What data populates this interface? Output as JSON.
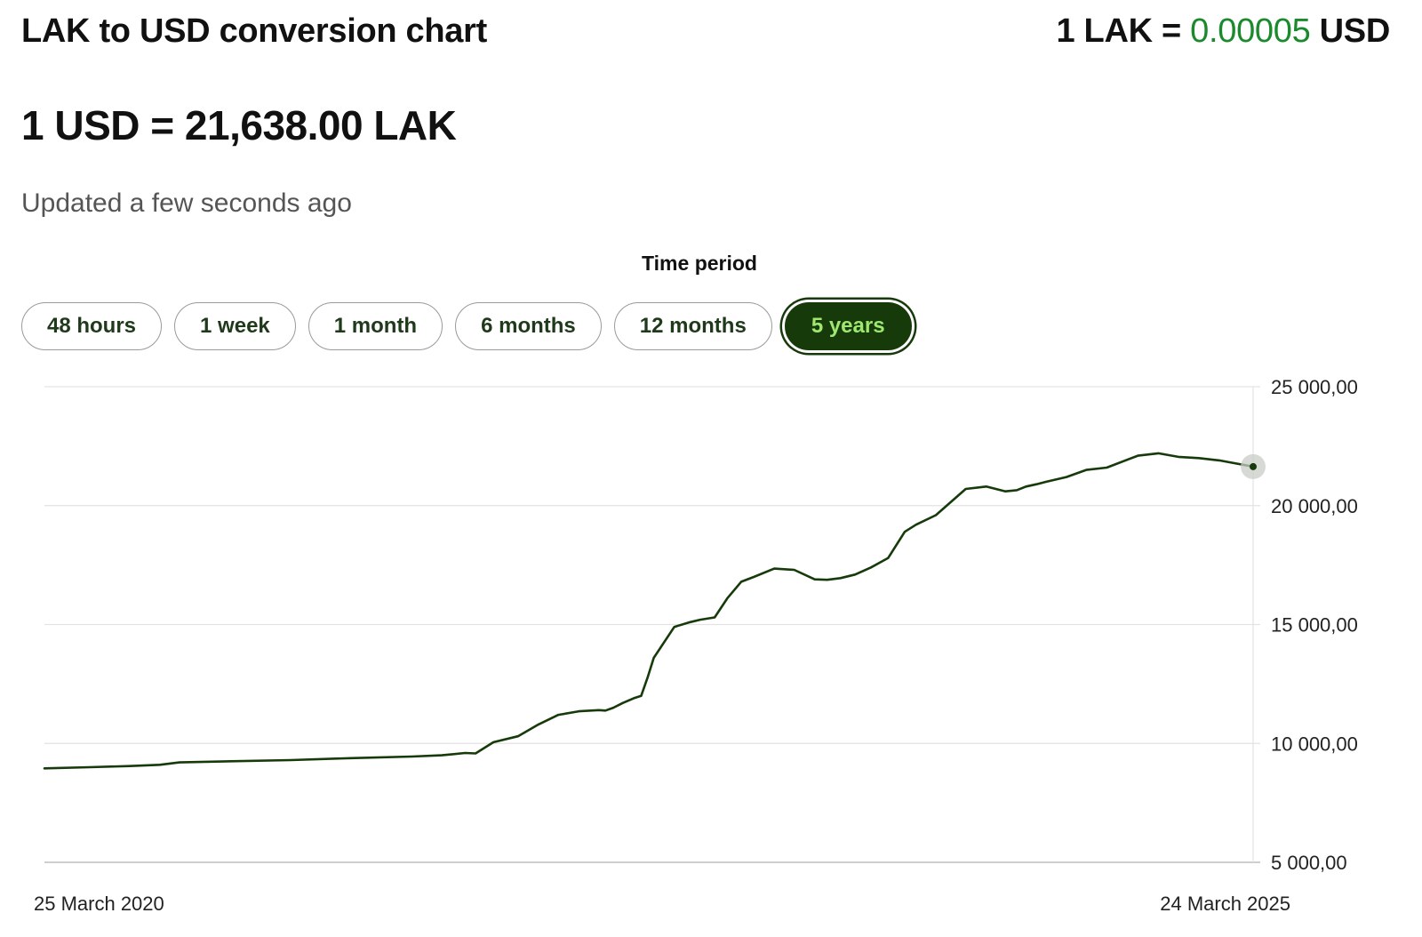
{
  "header": {
    "title": "LAK to USD conversion chart",
    "inverse_prefix": "1 LAK = ",
    "inverse_value": "0.00005",
    "inverse_suffix": " USD",
    "rate": "1 USD = 21,638.00 LAK",
    "updated": "Updated a few seconds ago"
  },
  "time_period": {
    "label": "Time period",
    "options": [
      "48 hours",
      "1 week",
      "1 month",
      "6 months",
      "12 months",
      "5 years"
    ],
    "selected": "5 years"
  },
  "colors": {
    "line": "#173a0b",
    "accent_green": "#1a8a2c",
    "active_button_bg": "#173a0b",
    "active_button_text": "#9fe870",
    "grid": "#e3e3e3"
  },
  "chart_data": {
    "type": "line",
    "title": "",
    "xlabel": "",
    "ylabel": "",
    "x_start_label": "25 March 2020",
    "x_end_label": "24 March 2025",
    "x_range": [
      "2020-03-25",
      "2025-03-24"
    ],
    "ylim": [
      5000,
      25000
    ],
    "y_ticks": [
      "25 000,00",
      "20 000,00",
      "15 000,00",
      "10 000,00",
      "5 000,00"
    ],
    "y_tick_values": [
      25000,
      20000,
      15000,
      10000,
      5000
    ],
    "grid": true,
    "y_axis_position": "right",
    "series": [
      {
        "x": [
          "2020-03-25",
          "2020-06-01",
          "2020-08-01",
          "2020-09-15",
          "2020-10-15",
          "2021-01-01",
          "2021-04-01",
          "2021-07-01",
          "2021-10-01",
          "2021-11-15",
          "2021-12-20",
          "2022-01-05",
          "2022-02-01",
          "2022-03-10",
          "2022-04-10",
          "2022-05-10",
          "2022-06-10",
          "2022-07-10",
          "2022-07-20",
          "2022-08-01",
          "2022-08-15",
          "2022-09-01",
          "2022-09-12",
          "2022-09-22",
          "2022-10-01",
          "2022-11-01",
          "2022-11-25",
          "2022-12-10",
          "2023-01-01",
          "2023-01-20",
          "2023-02-10",
          "2023-03-01",
          "2023-04-01",
          "2023-05-01",
          "2023-06-01",
          "2023-06-20",
          "2023-07-10",
          "2023-08-01",
          "2023-08-25",
          "2023-09-20",
          "2023-10-15",
          "2023-11-01",
          "2023-12-01",
          "2024-01-15",
          "2024-02-15",
          "2024-03-15",
          "2024-04-01",
          "2024-04-15",
          "2024-05-01",
          "2024-05-15",
          "2024-06-15",
          "2024-07-15",
          "2024-08-15",
          "2024-10-01",
          "2024-11-01",
          "2024-12-01",
          "2025-01-01",
          "2025-02-01",
          "2025-03-24"
        ],
        "values": [
          8950,
          9000,
          9050,
          9100,
          9200,
          9250,
          9300,
          9380,
          9450,
          9500,
          9600,
          9580,
          10050,
          10300,
          10800,
          11200,
          11350,
          11400,
          11380,
          11500,
          11700,
          11900,
          12000,
          12800,
          13600,
          14900,
          15100,
          15200,
          15300,
          16100,
          16800,
          17000,
          17350,
          17300,
          16900,
          16880,
          16950,
          17100,
          17400,
          17800,
          18900,
          19200,
          19600,
          20700,
          20800,
          20600,
          20650,
          20800,
          20900,
          21000,
          21200,
          21500,
          21600,
          22100,
          22200,
          22050,
          22000,
          21900,
          21638
        ]
      }
    ],
    "current_value_marker": 21638
  }
}
